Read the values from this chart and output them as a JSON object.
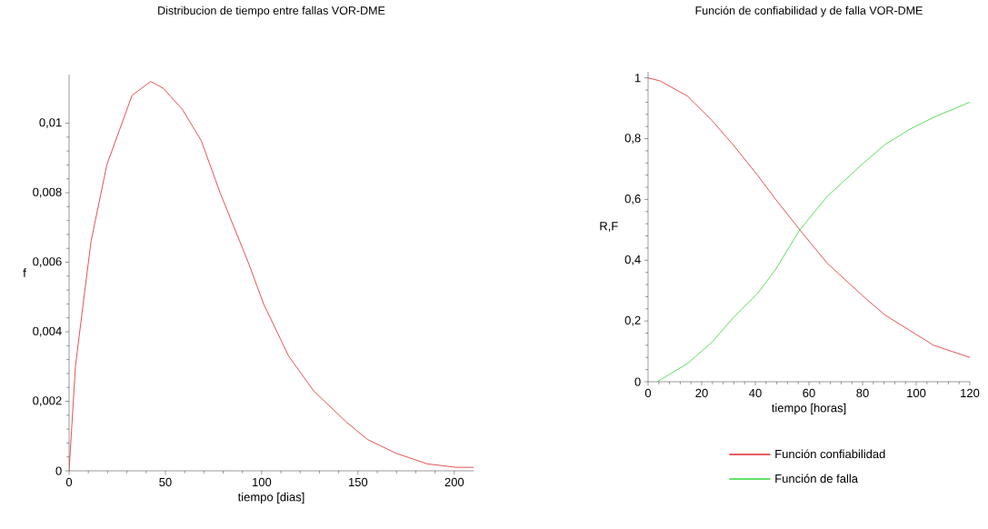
{
  "chart_data": [
    {
      "type": "line",
      "title": "Distribucion de tiempo entre fallas VOR-DME",
      "xlabel": "tiempo [dias]",
      "ylabel": "f",
      "xlim": [
        0,
        210
      ],
      "ylim": [
        0,
        0.0114
      ],
      "xticks": [
        0,
        50,
        100,
        150,
        200
      ],
      "yticks": [
        0,
        {
          "value": 0.002,
          "label": "0,002"
        },
        {
          "value": 0.004,
          "label": "0,004"
        },
        {
          "value": 0.006,
          "label": "0,006"
        },
        {
          "value": 0.008,
          "label": "0,008"
        },
        {
          "value": 0.01,
          "label": "0,01"
        }
      ],
      "series": [
        {
          "color": "#e0262a",
          "x": [
            0,
            3.3,
            7.3,
            11.4,
            19.6,
            32.7,
            42.4,
            49,
            58.8,
            68.6,
            78.4,
            93,
            101,
            114,
            127,
            144,
            155,
            170,
            186,
            201,
            210
          ],
          "values": [
            0,
            0.003,
            0.0048,
            0.0066,
            0.0088,
            0.0108,
            0.0112,
            0.011,
            0.0104,
            0.0095,
            0.008,
            0.006,
            0.0048,
            0.0033,
            0.0023,
            0.0014,
            0.0009,
            0.0005,
            0.0002,
            0.0001,
            0.0001
          ]
        }
      ]
    },
    {
      "type": "line",
      "title": "Función de confiabilidad y de falla VOR-DME",
      "xlabel": "tiempo [horas]",
      "ylabel": "R,F",
      "xlim": [
        0,
        120
      ],
      "ylim": [
        0,
        1.02
      ],
      "xticks": [
        0,
        20,
        40,
        60,
        80,
        100,
        120
      ],
      "yticks": [
        0,
        {
          "value": 0.2,
          "label": "0,2"
        },
        {
          "value": 0.4,
          "label": "0,4"
        },
        {
          "value": 0.6,
          "label": "0,6"
        },
        {
          "value": 0.8,
          "label": "0,8"
        },
        1
      ],
      "legend": "bottom",
      "series": [
        {
          "name": "Función confiabilidad",
          "color": "#e0262a",
          "x": [
            0,
            4.5,
            14.7,
            23.8,
            31.7,
            40.8,
            47.6,
            56.6,
            66.8,
            80.4,
            88.3,
            97.4,
            106.5,
            120
          ],
          "values": [
            1.0,
            0.99,
            0.94,
            0.86,
            0.78,
            0.68,
            0.6,
            0.5,
            0.39,
            0.28,
            0.22,
            0.17,
            0.12,
            0.08
          ]
        },
        {
          "name": "Función de falla",
          "color": "#33d633",
          "x": [
            3.4,
            14.7,
            23.8,
            31.7,
            40.8,
            47.6,
            56.6,
            66.8,
            80.4,
            88.3,
            97.4,
            106.5,
            120
          ],
          "values": [
            0,
            0.06,
            0.13,
            0.21,
            0.29,
            0.37,
            0.5,
            0.61,
            0.72,
            0.78,
            0.83,
            0.87,
            0.92
          ]
        }
      ]
    }
  ]
}
